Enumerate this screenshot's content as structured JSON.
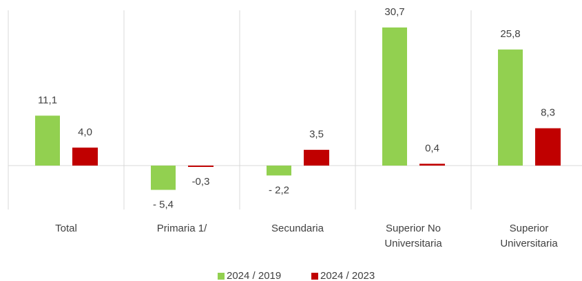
{
  "chart_data": {
    "type": "bar",
    "categories": [
      "Total",
      "Primaria 1/",
      "Secundaria",
      "Superior No Universitaria",
      "Superior Universitaria"
    ],
    "series": [
      {
        "name": "2024 / 2019",
        "color": "#92d050",
        "values": [
          11.1,
          -5.4,
          -2.2,
          30.7,
          25.8
        ],
        "value_labels": [
          "11,1",
          "- 5,4",
          "- 2,2",
          "30,7",
          "25,8"
        ]
      },
      {
        "name": "2024 / 2023",
        "color": "#c00000",
        "values": [
          4.0,
          -0.3,
          3.5,
          0.4,
          8.3
        ],
        "value_labels": [
          "4,0",
          "-0,3",
          "3,5",
          "0,4",
          "8,3"
        ]
      }
    ]
  }
}
